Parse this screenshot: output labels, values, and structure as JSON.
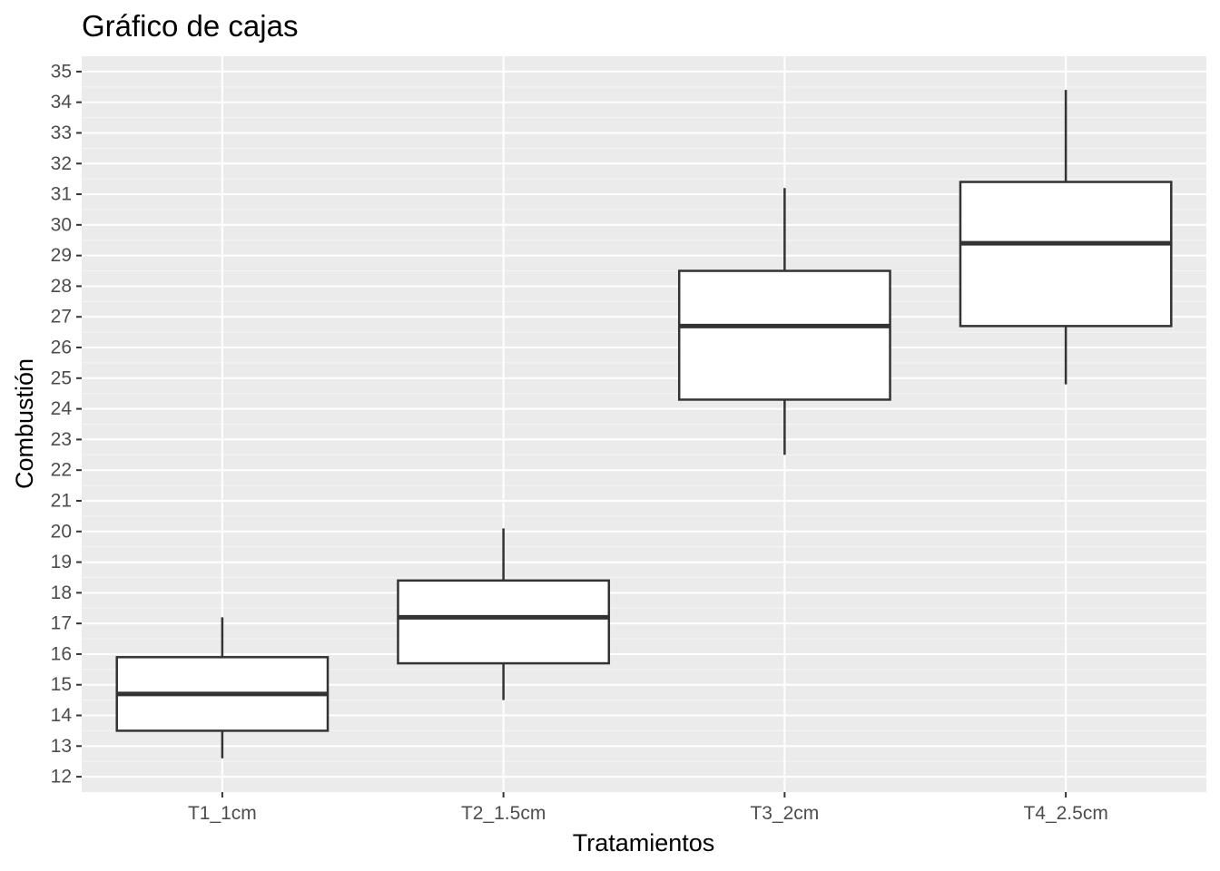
{
  "chart_data": {
    "type": "boxplot",
    "title": "Gráfico de cajas",
    "xlabel": "Tratamientos",
    "ylabel": "Combustión",
    "categories": [
      "T1_1cm",
      "T2_1.5cm",
      "T3_2cm",
      "T4_2.5cm"
    ],
    "boxes": [
      {
        "category": "T1_1cm",
        "whisker_low": 12.6,
        "q1": 13.5,
        "median": 14.7,
        "q3": 15.9,
        "whisker_high": 17.2
      },
      {
        "category": "T2_1.5cm",
        "whisker_low": 14.5,
        "q1": 15.7,
        "median": 17.2,
        "q3": 18.4,
        "whisker_high": 20.1
      },
      {
        "category": "T3_2cm",
        "whisker_low": 22.5,
        "q1": 24.3,
        "median": 26.7,
        "q3": 28.5,
        "whisker_high": 31.2
      },
      {
        "category": "T4_2.5cm",
        "whisker_low": 24.8,
        "q1": 26.7,
        "median": 29.4,
        "q3": 31.4,
        "whisker_high": 34.4
      }
    ],
    "y_ticks": [
      12,
      13,
      14,
      15,
      16,
      17,
      18,
      19,
      20,
      21,
      22,
      23,
      24,
      25,
      26,
      27,
      28,
      29,
      30,
      31,
      32,
      33,
      34,
      35
    ],
    "ylim": [
      11.5,
      35.5
    ],
    "grid": true,
    "legend": "none",
    "colors": {
      "panel_background": "#ebebeb",
      "grid_major": "#ffffff",
      "grid_minor": "#f5f5f5",
      "box_fill": "#ffffff",
      "box_stroke": "#333333",
      "tick_label": "#4d4d4d",
      "tick_mark": "#333333"
    }
  }
}
